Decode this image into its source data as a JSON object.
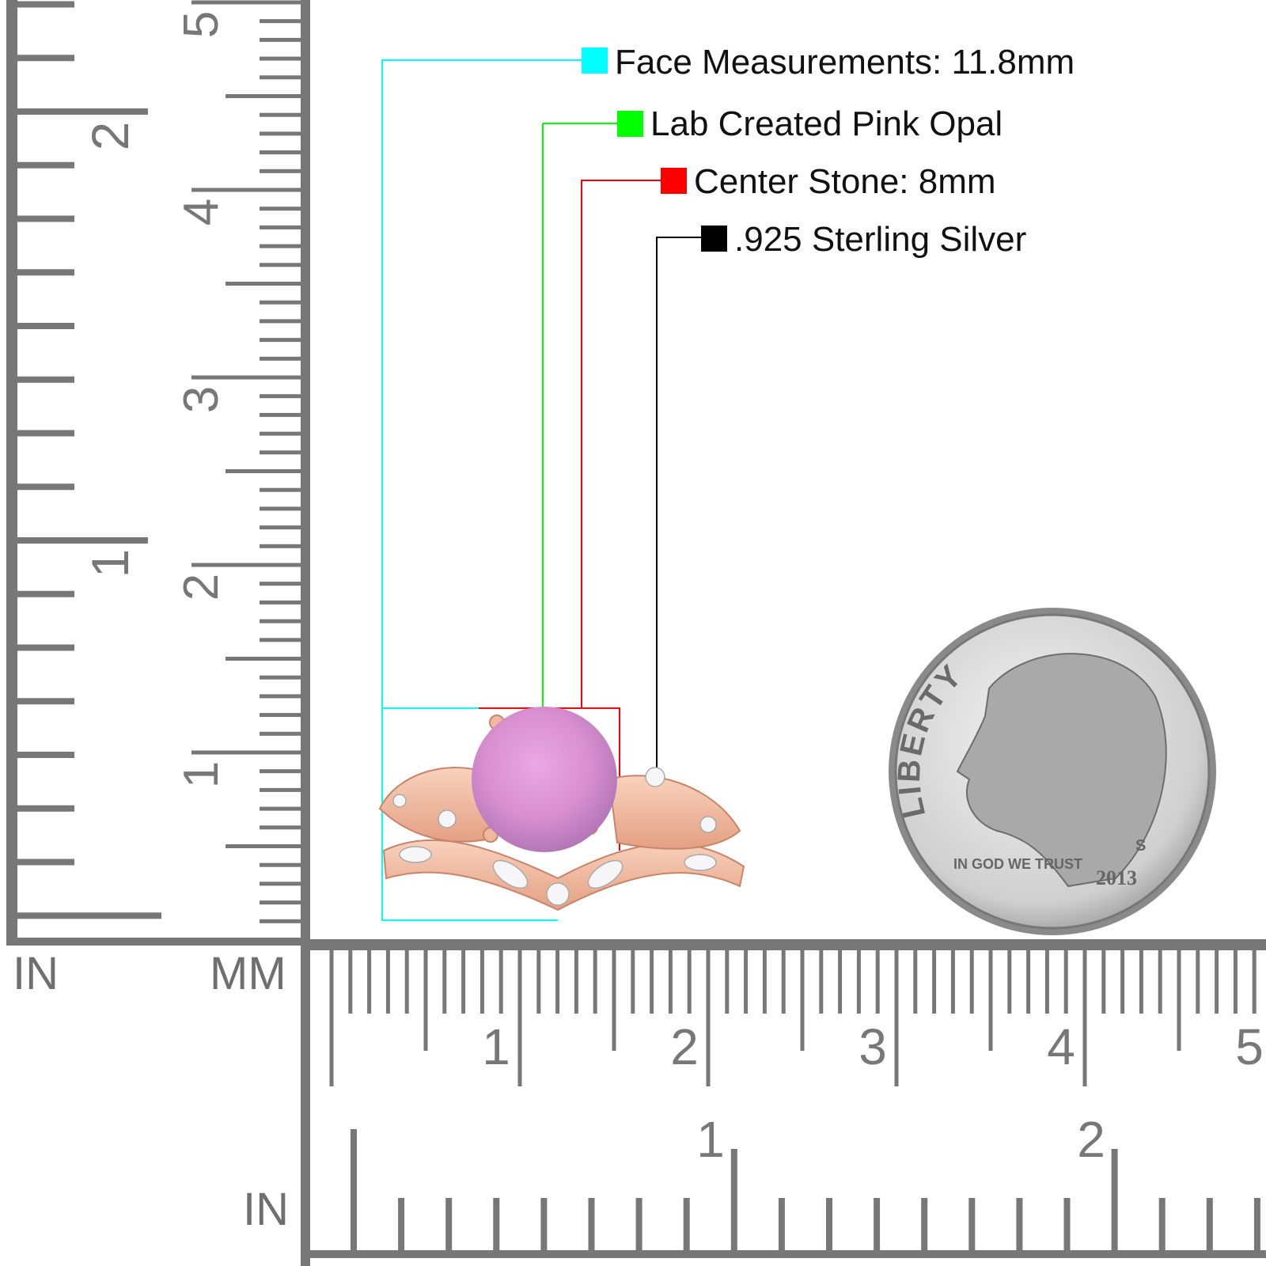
{
  "specs": [
    {
      "label": "Face Measurements: 11.8mm",
      "color": "#00ffff"
    },
    {
      "label": "Lab Created Pink Opal",
      "color": "#00ff00"
    },
    {
      "label": "Center Stone: 8mm",
      "color": "#ff0000"
    },
    {
      "label": ".925 Sterling Silver",
      "color": "#000000"
    }
  ],
  "rulers": {
    "vertical_inch_unit": "IN",
    "vertical_mm_unit": "MM",
    "horizontal_inch_unit": "IN",
    "vertical_inch_labels": [
      "2",
      "1"
    ],
    "vertical_cm_labels": [
      "1",
      "2",
      "3",
      "4",
      "5"
    ],
    "horizontal_cm_labels": [
      "1",
      "2",
      "3",
      "4",
      "5"
    ],
    "horizontal_inch_labels": [
      "1",
      "2"
    ],
    "tick_color": "#777777"
  },
  "product": {
    "stone_color": "#d98fd0",
    "metal_color": "#f2b89e"
  },
  "coin": {
    "inscription": "LIBERTY",
    "motto": "IN GOD WE TRUST",
    "mint_mark": "S",
    "year": "2013"
  }
}
